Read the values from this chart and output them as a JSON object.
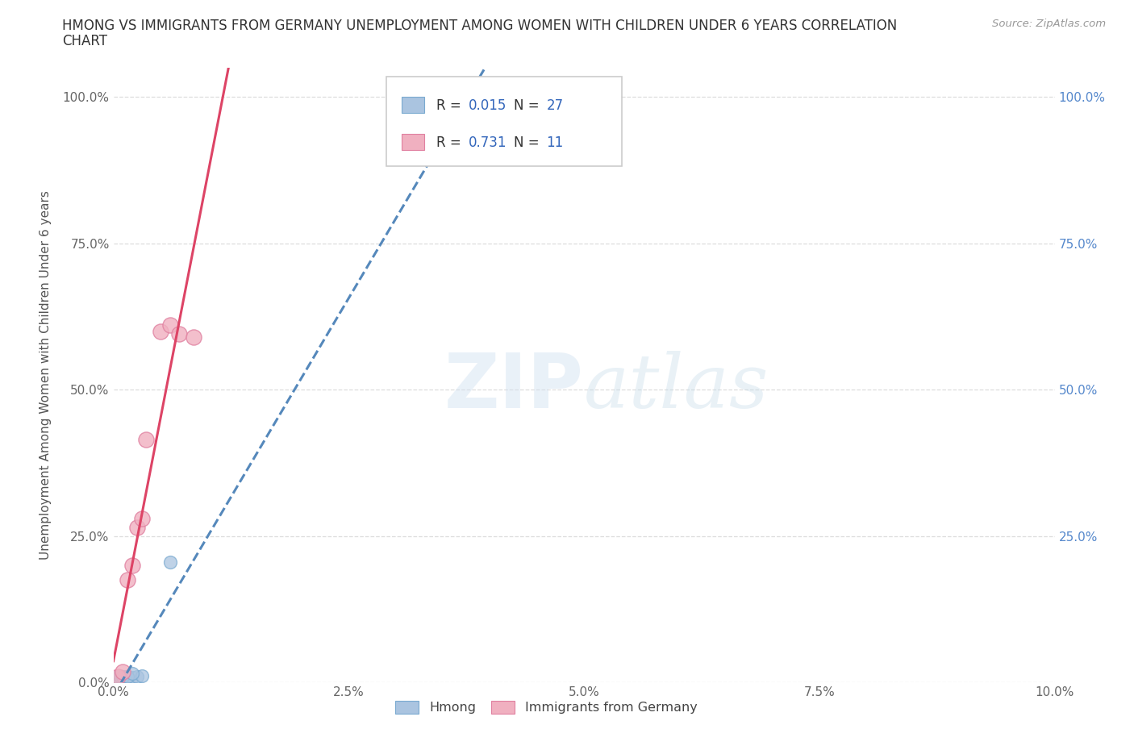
{
  "title_line1": "HMONG VS IMMIGRANTS FROM GERMANY UNEMPLOYMENT AMONG WOMEN WITH CHILDREN UNDER 6 YEARS CORRELATION",
  "title_line2": "CHART",
  "source": "Source: ZipAtlas.com",
  "ylabel": "Unemployment Among Women with Children Under 6 years",
  "xlabel": "",
  "background_color": "#ffffff",
  "watermark": "ZIPatlas",
  "hmong_color": "#aac4e0",
  "hmong_edge_color": "#7aaad0",
  "germany_color": "#f0b0c0",
  "germany_edge_color": "#e080a0",
  "hmong_line_color": "#5588bb",
  "germany_line_color": "#dd4466",
  "hmong_R": 0.015,
  "hmong_N": 27,
  "germany_R": 0.731,
  "germany_N": 11,
  "hmong_x": [
    0.0002,
    0.0003,
    0.0004,
    0.0005,
    0.0006,
    0.0007,
    0.0008,
    0.0009,
    0.001,
    0.0011,
    0.0012,
    0.0013,
    0.0014,
    0.0015,
    0.0016,
    0.0017,
    0.0018,
    0.002,
    0.0025,
    0.003,
    0.0004,
    0.0006,
    0.0008,
    0.001,
    0.0015,
    0.002,
    0.006
  ],
  "hmong_y": [
    0.005,
    0.005,
    0.005,
    0.005,
    0.005,
    0.005,
    0.005,
    0.005,
    0.005,
    0.005,
    0.01,
    0.008,
    0.005,
    0.005,
    0.005,
    0.005,
    0.005,
    0.008,
    0.01,
    0.012,
    0.01,
    0.012,
    0.008,
    0.01,
    0.01,
    0.015,
    0.205
  ],
  "germany_x": [
    0.0005,
    0.001,
    0.0015,
    0.002,
    0.0025,
    0.003,
    0.0035,
    0.005,
    0.006,
    0.007,
    0.0085
  ],
  "germany_y": [
    0.01,
    0.018,
    0.175,
    0.2,
    0.265,
    0.28,
    0.415,
    0.6,
    0.61,
    0.595,
    0.59
  ],
  "xlim": [
    0.0,
    0.1
  ],
  "ylim": [
    0.0,
    1.05
  ],
  "xtick_labels": [
    "0.0%",
    "2.5%",
    "5.0%",
    "7.5%",
    "10.0%"
  ],
  "xtick_vals": [
    0.0,
    0.025,
    0.05,
    0.075,
    0.1
  ],
  "ytick_labels": [
    "0.0%",
    "25.0%",
    "50.0%",
    "75.0%",
    "100.0%"
  ],
  "ytick_vals": [
    0.0,
    0.25,
    0.5,
    0.75,
    1.0
  ],
  "right_ytick_labels": [
    "25.0%",
    "50.0%",
    "75.0%",
    "100.0%"
  ],
  "right_ytick_vals": [
    0.25,
    0.5,
    0.75,
    1.0
  ],
  "legend_label_hmong": "Hmong",
  "legend_label_germany": "Immigrants from Germany"
}
